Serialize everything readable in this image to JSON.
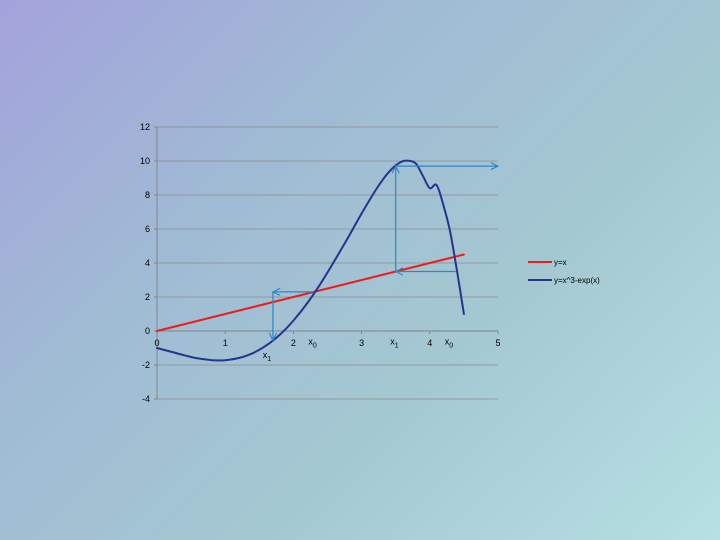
{
  "chart_data": {
    "type": "line",
    "xlim": [
      0,
      5
    ],
    "ylim": [
      -4,
      12
    ],
    "x_ticks": [
      0,
      1,
      2,
      3,
      4,
      5
    ],
    "y_ticks": [
      -4,
      -2,
      0,
      2,
      4,
      6,
      8,
      10,
      12
    ],
    "x_tick_labels": [
      "0",
      "1",
      "2",
      "3",
      "4",
      "5"
    ],
    "y_tick_labels": [
      "-4",
      "-2",
      "0",
      "2",
      "4",
      "6",
      "8",
      "10",
      "12"
    ],
    "grid": "horizontal",
    "legend_position": "right",
    "series": [
      {
        "name": "y=x",
        "color": "#ee1c1c",
        "x": [
          0,
          4.5
        ],
        "y": [
          0,
          4.5
        ]
      },
      {
        "name": "y=x^3-exp(x)",
        "color": "#27348b",
        "x": [
          0,
          0.2,
          0.4,
          0.6,
          0.8,
          0.9,
          1.0,
          1.2,
          1.4,
          1.6,
          1.8,
          2.0,
          2.2,
          2.4,
          2.6,
          2.8,
          3.0,
          3.2,
          3.3,
          3.4,
          3.5,
          3.6,
          3.7,
          3.8,
          3.9,
          4.0,
          4.1,
          4.2,
          4.3,
          4.4,
          4.5
        ],
        "y": [
          -1.0,
          -1.21,
          -1.43,
          -1.61,
          -1.71,
          -1.73,
          -1.72,
          -1.59,
          -1.31,
          -0.86,
          -0.22,
          0.61,
          1.62,
          2.8,
          4.11,
          5.49,
          6.91,
          8.24,
          8.84,
          9.35,
          9.74,
          9.98,
          10.01,
          9.83,
          9.11,
          8.4,
          8.58,
          7.4,
          5.8,
          3.5,
          1.0
        ]
      }
    ],
    "annotations": [
      {
        "text": "x",
        "sub": "0",
        "x": 2.22,
        "y": -0.8
      },
      {
        "text": "x",
        "sub": "1",
        "x": 1.55,
        "y": -1.6
      },
      {
        "text": "x",
        "sub": "1",
        "x": 3.42,
        "y": -0.8
      },
      {
        "text": "x",
        "sub": "0",
        "x": 4.22,
        "y": -0.8
      }
    ],
    "arrows": [
      {
        "from": [
          2.3,
          2.3
        ],
        "to": [
          1.7,
          2.3
        ]
      },
      {
        "from": [
          1.7,
          2.3
        ],
        "to": [
          1.7,
          -0.55
        ]
      },
      {
        "from": [
          4.38,
          3.5
        ],
        "to": [
          3.5,
          3.5
        ]
      },
      {
        "from": [
          3.5,
          3.5
        ],
        "to": [
          3.5,
          9.7
        ]
      },
      {
        "from": [
          3.5,
          9.7
        ],
        "to": [
          5.0,
          9.7
        ]
      }
    ],
    "arrow_color": "#2e86c8"
  }
}
